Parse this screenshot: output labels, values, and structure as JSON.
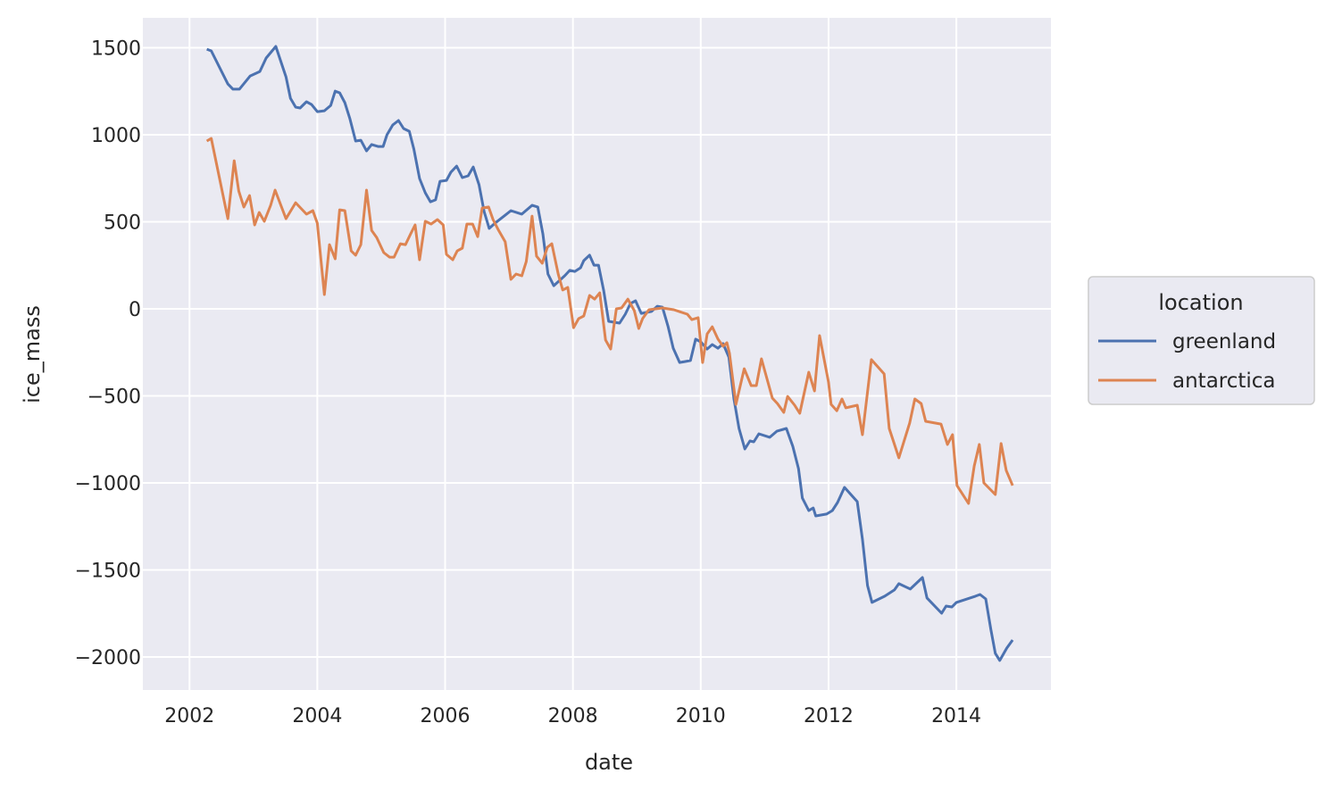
{
  "chart_data": {
    "type": "line",
    "title": "",
    "xlabel": "date",
    "ylabel": "ice_mass",
    "xlim": [
      2001.27,
      2015.48
    ],
    "ylim": [
      -2190,
      1672
    ],
    "grid": true,
    "x_ticks": [
      2002,
      2004,
      2006,
      2008,
      2010,
      2012,
      2014
    ],
    "x_tick_labels": [
      "2002",
      "2004",
      "2006",
      "2008",
      "2010",
      "2012",
      "2014"
    ],
    "y_ticks": [
      1500,
      1000,
      500,
      0,
      -500,
      -1000,
      -1500,
      -2000
    ],
    "y_tick_labels": [
      "1500",
      "1000",
      "500",
      "0",
      "−500",
      "−1000",
      "−1500",
      "−2000"
    ],
    "legend": {
      "title": "location",
      "placement": "outside-right"
    },
    "series": [
      {
        "name": "greenland",
        "color": "#4c72b0",
        "x": [
          2002.27,
          2002.34,
          2002.6,
          2002.68,
          2002.78,
          2002.95,
          2003.1,
          2003.2,
          2003.35,
          2003.51,
          2003.58,
          2003.66,
          2003.73,
          2003.83,
          2003.91,
          2004.0,
          2004.11,
          2004.21,
          2004.28,
          2004.35,
          2004.43,
          2004.51,
          2004.6,
          2004.68,
          2004.77,
          2004.85,
          2004.95,
          2005.03,
          2005.09,
          2005.18,
          2005.27,
          2005.35,
          2005.44,
          2005.51,
          2005.6,
          2005.69,
          2005.77,
          2005.85,
          2005.92,
          2006.02,
          2006.09,
          2006.18,
          2006.27,
          2006.36,
          2006.44,
          2006.53,
          2006.61,
          2006.69,
          2006.78,
          2006.94,
          2007.03,
          2007.2,
          2007.36,
          2007.45,
          2007.53,
          2007.61,
          2007.7,
          2007.87,
          2007.95,
          2008.03,
          2008.12,
          2008.17,
          2008.26,
          2008.33,
          2008.4,
          2008.48,
          2008.56,
          2008.73,
          2008.82,
          2008.9,
          2008.98,
          2009.07,
          2009.23,
          2009.32,
          2009.4,
          2009.49,
          2009.57,
          2009.67,
          2009.75,
          2009.84,
          2009.92,
          2010.0,
          2010.1,
          2010.18,
          2010.27,
          2010.35,
          2010.44,
          2010.52,
          2010.6,
          2010.69,
          2010.77,
          2010.83,
          2010.91,
          2011.08,
          2011.19,
          2011.34,
          2011.44,
          2011.53,
          2011.59,
          2011.69,
          2011.76,
          2011.8,
          2011.97,
          2012.06,
          2012.14,
          2012.25,
          2012.45,
          2012.53,
          2012.61,
          2012.68,
          2012.88,
          2013.03,
          2013.1,
          2013.28,
          2013.47,
          2013.54,
          2013.77,
          2013.84,
          2013.93,
          2014.0,
          2014.3,
          2014.37,
          2014.46,
          2014.54,
          2014.61,
          2014.68,
          2014.79,
          2014.88
        ],
        "y": [
          1492,
          1482,
          1292,
          1262,
          1262,
          1338,
          1364,
          1441,
          1508,
          1333,
          1210,
          1159,
          1154,
          1190,
          1174,
          1133,
          1138,
          1169,
          1251,
          1241,
          1185,
          1092,
          964,
          969,
          908,
          944,
          933,
          933,
          1000,
          1056,
          1082,
          1036,
          1020,
          918,
          749,
          667,
          615,
          626,
          733,
          738,
          785,
          820,
          754,
          764,
          815,
          713,
          559,
          462,
          492,
          538,
          564,
          544,
          595,
          585,
          431,
          200,
          133,
          190,
          221,
          215,
          236,
          277,
          308,
          251,
          251,
          108,
          -72,
          -82,
          -31,
          31,
          46,
          -26,
          -15,
          15,
          10,
          -103,
          -226,
          -308,
          -303,
          -297,
          -174,
          -190,
          -231,
          -205,
          -226,
          -200,
          -277,
          -518,
          -687,
          -805,
          -759,
          -764,
          -718,
          -738,
          -703,
          -687,
          -790,
          -918,
          -1087,
          -1159,
          -1144,
          -1190,
          -1179,
          -1159,
          -1113,
          -1026,
          -1108,
          -1323,
          -1590,
          -1687,
          -1651,
          -1615,
          -1579,
          -1610,
          -1544,
          -1661,
          -1749,
          -1708,
          -1713,
          -1687,
          -1651,
          -1641,
          -1667,
          -1841,
          -1979,
          -2020,
          -1949,
          -1903
        ]
      },
      {
        "name": "antarctica",
        "color": "#dd8452",
        "x": [
          2002.27,
          2002.34,
          2002.6,
          2002.7,
          2002.77,
          2002.85,
          2002.94,
          2003.02,
          2003.09,
          2003.17,
          2003.27,
          2003.34,
          2003.51,
          2003.66,
          2003.83,
          2003.93,
          2004.0,
          2004.11,
          2004.19,
          2004.28,
          2004.35,
          2004.43,
          2004.53,
          2004.6,
          2004.68,
          2004.77,
          2004.85,
          2004.93,
          2005.04,
          2005.13,
          2005.2,
          2005.3,
          2005.38,
          2005.46,
          2005.53,
          2005.6,
          2005.69,
          2005.78,
          2005.88,
          2005.97,
          2006.02,
          2006.12,
          2006.19,
          2006.27,
          2006.34,
          2006.43,
          2006.51,
          2006.58,
          2006.68,
          2006.75,
          2006.83,
          2006.94,
          2007.03,
          2007.11,
          2007.2,
          2007.27,
          2007.36,
          2007.43,
          2007.52,
          2007.6,
          2007.67,
          2007.77,
          2007.84,
          2007.92,
          2008.01,
          2008.09,
          2008.17,
          2008.26,
          2008.34,
          2008.42,
          2008.51,
          2008.59,
          2008.68,
          2008.76,
          2008.86,
          2008.96,
          2009.03,
          2009.09,
          2009.19,
          2009.4,
          2009.58,
          2009.79,
          2009.86,
          2009.96,
          2010.03,
          2010.1,
          2010.18,
          2010.27,
          2010.35,
          2010.41,
          2010.45,
          2010.55,
          2010.68,
          2010.79,
          2010.87,
          2010.95,
          2011.12,
          2011.2,
          2011.3,
          2011.36,
          2011.47,
          2011.55,
          2011.69,
          2011.78,
          2011.86,
          2012.0,
          2012.04,
          2012.13,
          2012.21,
          2012.27,
          2012.45,
          2012.53,
          2012.67,
          2012.87,
          2012.95,
          2013.1,
          2013.27,
          2013.35,
          2013.45,
          2013.52,
          2013.76,
          2013.86,
          2013.94,
          2014.01,
          2014.19,
          2014.28,
          2014.36,
          2014.43,
          2014.61,
          2014.7,
          2014.78,
          2014.88
        ],
        "y": [
          964,
          979,
          518,
          851,
          677,
          585,
          651,
          482,
          554,
          503,
          595,
          682,
          518,
          610,
          544,
          564,
          492,
          82,
          369,
          287,
          569,
          564,
          333,
          308,
          369,
          682,
          451,
          410,
          323,
          297,
          297,
          374,
          369,
          431,
          482,
          282,
          503,
          487,
          513,
          482,
          313,
          282,
          333,
          349,
          487,
          487,
          415,
          579,
          585,
          513,
          456,
          385,
          169,
          200,
          190,
          272,
          533,
          303,
          262,
          354,
          374,
          200,
          108,
          123,
          -108,
          -56,
          -41,
          77,
          56,
          92,
          -179,
          -231,
          0,
          5,
          56,
          -10,
          -113,
          -56,
          -5,
          5,
          -5,
          -31,
          -62,
          -51,
          -308,
          -144,
          -103,
          -174,
          -215,
          -195,
          -256,
          -549,
          -344,
          -441,
          -441,
          -287,
          -513,
          -544,
          -595,
          -503,
          -554,
          -600,
          -364,
          -472,
          -154,
          -421,
          -549,
          -585,
          -518,
          -569,
          -554,
          -723,
          -292,
          -374,
          -687,
          -856,
          -656,
          -518,
          -544,
          -646,
          -662,
          -779,
          -723,
          -1015,
          -1118,
          -903,
          -779,
          -1000,
          -1067,
          -774,
          -928,
          -1015
        ]
      }
    ]
  }
}
